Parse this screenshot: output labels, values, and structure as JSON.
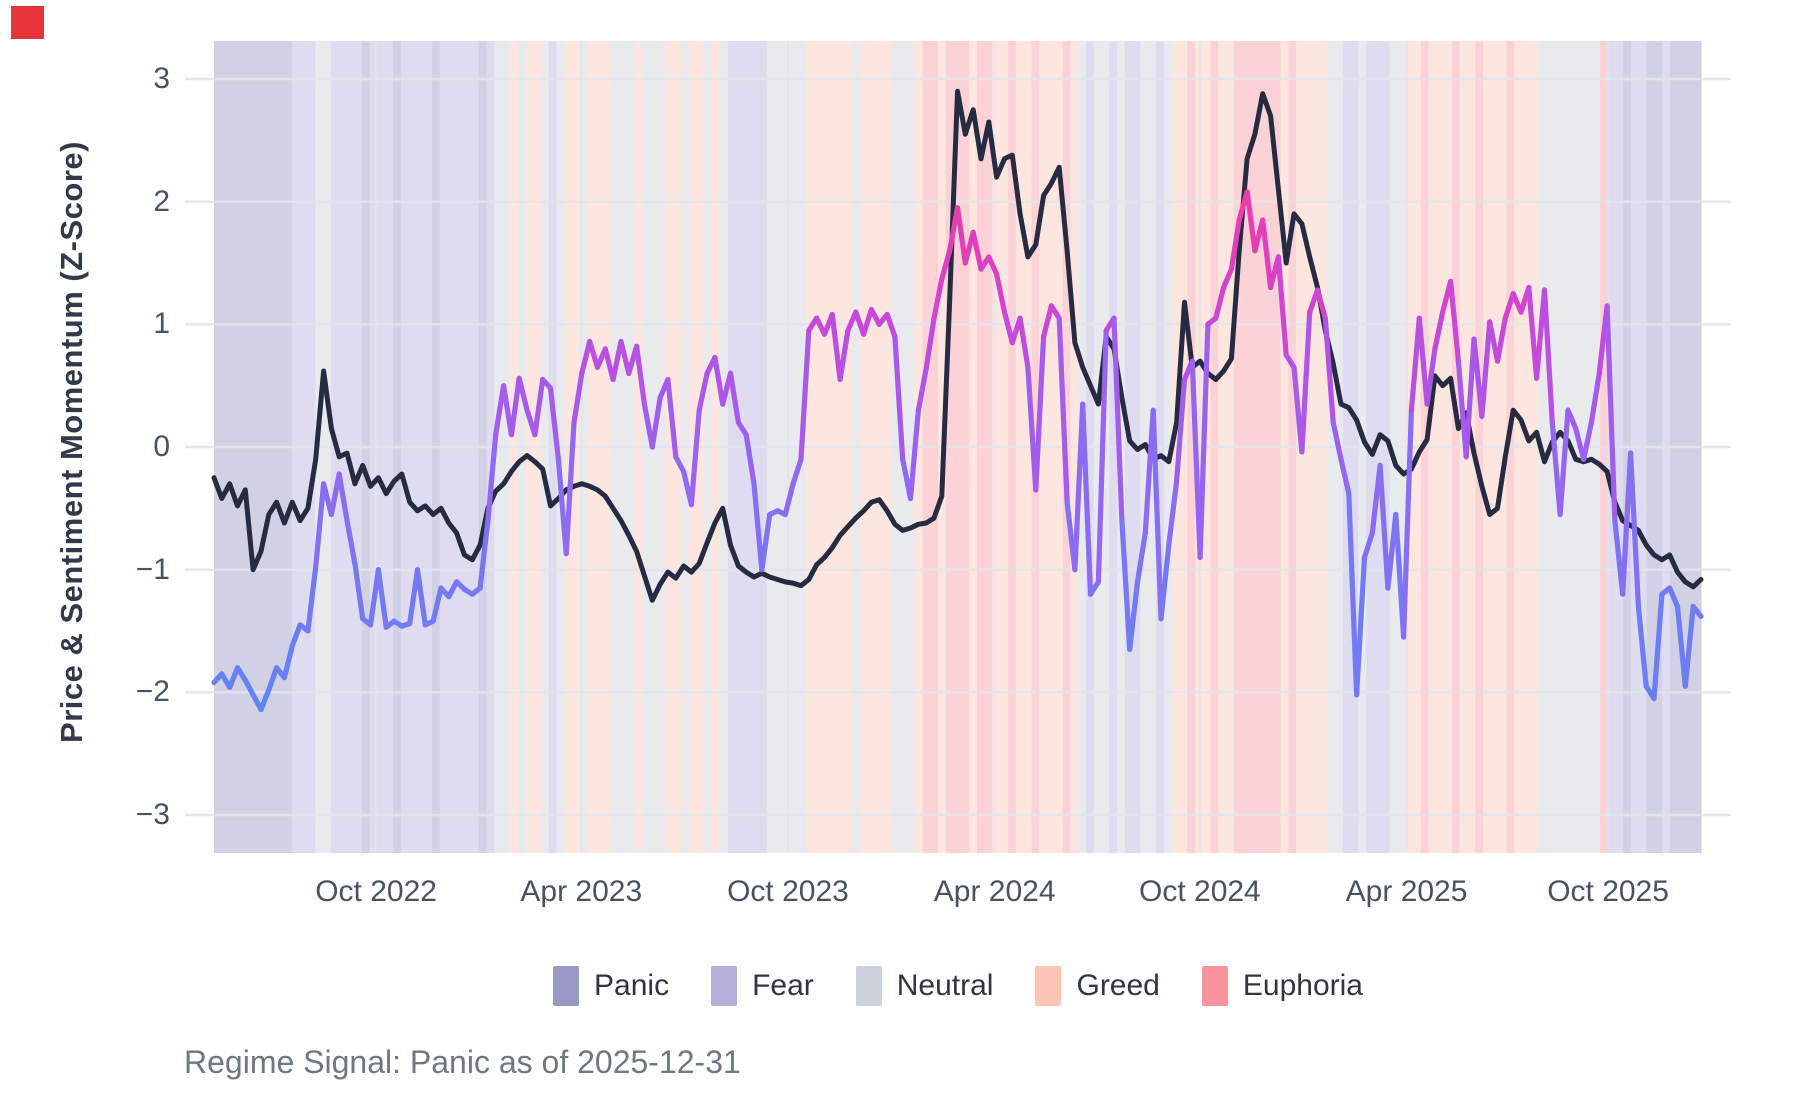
{
  "corner_marker": {
    "color": "#e5343a"
  },
  "y_axis": {
    "title": "Price & Sentiment Momentum (Z-Score)"
  },
  "caption": "Regime Signal: Panic as of 2025-12-31",
  "chart_data": {
    "type": "line",
    "ylabel": "Price & Sentiment Momentum (Z-Score)",
    "ylim": [
      -3.31,
      3.31
    ],
    "grid": true,
    "grid_color": "#e0e4eb",
    "y_ticks": [
      {
        "label": "3",
        "value": 3
      },
      {
        "label": "2",
        "value": 2
      },
      {
        "label": "1",
        "value": 1
      },
      {
        "label": "0",
        "value": 0
      },
      {
        "label": "−1",
        "value": -1
      },
      {
        "label": "−2",
        "value": -2
      },
      {
        "label": "−3",
        "value": -3
      }
    ],
    "x_ticks": [
      {
        "label": "Oct 2022",
        "pos": 0.109
      },
      {
        "label": "Apr 2023",
        "pos": 0.247
      },
      {
        "label": "Oct 2023",
        "pos": 0.386
      },
      {
        "label": "Apr 2024",
        "pos": 0.525
      },
      {
        "label": "Oct 2024",
        "pos": 0.663
      },
      {
        "label": "Apr 2025",
        "pos": 0.802
      },
      {
        "label": "Oct 2025",
        "pos": 0.9375
      }
    ],
    "legend_position": "bottom",
    "regime_legend": [
      {
        "code": "P",
        "label": "Panic",
        "color": "#9a99c6",
        "band": "#d2d1e4"
      },
      {
        "code": "F",
        "label": "Fear",
        "color": "#b2b0d8",
        "band": "#dedcee"
      },
      {
        "code": "N",
        "label": "Neutral",
        "color": "#cdd2da",
        "band": "#e8eaee"
      },
      {
        "code": "G",
        "label": "Greed",
        "color": "#fdc3b5",
        "band": "#fde6df"
      },
      {
        "code": "E",
        "label": "Euphoria",
        "color": "#f8949c",
        "band": "#fbd3d7"
      }
    ],
    "regimes_weekly": "PPPPPPPPPPFFFNNFFFFPFFFPFFFFPFFFFFPFNNGNGGNFNGGNGGGNNNGNNNGGNGGNGNFFFFFNNNNNGGGGGGNGGGGNNNGEEGEEEGEEGGEGGEGGGEGNFNNFNFFNNFNGGEGGEGGEEEEEEGEGGGGNNFFNFFFNNGGEGGGEGGEGGGEGGGNNNNNNNNEFFPFFPPFPPPP",
    "series": [
      {
        "name": "price_momentum",
        "color": "#272b41",
        "values": [
          -0.25,
          -0.42,
          -0.3,
          -0.48,
          -0.35,
          -1.0,
          -0.85,
          -0.55,
          -0.45,
          -0.62,
          -0.45,
          -0.6,
          -0.5,
          -0.1,
          0.62,
          0.15,
          -0.08,
          -0.05,
          -0.3,
          -0.15,
          -0.32,
          -0.25,
          -0.38,
          -0.28,
          -0.22,
          -0.45,
          -0.52,
          -0.48,
          -0.55,
          -0.5,
          -0.62,
          -0.7,
          -0.88,
          -0.92,
          -0.8,
          -0.5,
          -0.36,
          -0.3,
          -0.2,
          -0.12,
          -0.07,
          -0.12,
          -0.18,
          -0.48,
          -0.42,
          -0.35,
          -0.32,
          -0.3,
          -0.32,
          -0.35,
          -0.4,
          -0.5,
          -0.6,
          -0.72,
          -0.85,
          -1.05,
          -1.25,
          -1.12,
          -1.02,
          -1.07,
          -0.97,
          -1.02,
          -0.95,
          -0.78,
          -0.62,
          -0.5,
          -0.8,
          -0.97,
          -1.02,
          -1.06,
          -1.03,
          -1.06,
          -1.08,
          -1.1,
          -1.11,
          -1.13,
          -1.08,
          -0.96,
          -0.9,
          -0.82,
          -0.72,
          -0.65,
          -0.58,
          -0.52,
          -0.45,
          -0.43,
          -0.52,
          -0.63,
          -0.68,
          -0.66,
          -0.63,
          -0.62,
          -0.58,
          -0.4,
          1.2,
          2.9,
          2.55,
          2.75,
          2.35,
          2.65,
          2.2,
          2.35,
          2.38,
          1.9,
          1.55,
          1.65,
          2.05,
          2.15,
          2.28,
          1.6,
          0.85,
          0.65,
          0.5,
          0.35,
          0.9,
          0.8,
          0.4,
          0.05,
          -0.02,
          0.02,
          -0.1,
          -0.07,
          -0.12,
          0.2,
          1.18,
          0.65,
          0.7,
          0.6,
          0.55,
          0.62,
          0.72,
          1.6,
          2.35,
          2.55,
          2.88,
          2.7,
          2.1,
          1.5,
          1.9,
          1.82,
          1.55,
          1.3,
          0.95,
          0.68,
          0.35,
          0.32,
          0.22,
          0.04,
          -0.06,
          0.1,
          0.05,
          -0.15,
          -0.22,
          -0.18,
          -0.04,
          0.06,
          0.58,
          0.5,
          0.56,
          0.15,
          0.28,
          -0.05,
          -0.32,
          -0.55,
          -0.5,
          -0.08,
          0.3,
          0.22,
          0.05,
          0.12,
          -0.12,
          0.04,
          0.12,
          0.05,
          -0.1,
          -0.12,
          -0.1,
          -0.14,
          -0.2,
          -0.45,
          -0.6,
          -0.64,
          -0.68,
          -0.8,
          -0.88,
          -0.92,
          -0.88,
          -1.02,
          -1.1,
          -1.14,
          -1.08
        ]
      },
      {
        "name": "sentiment_momentum",
        "colormap": [
          [
            -2.3,
            "#5b87f4"
          ],
          [
            -1.2,
            "#7579f3"
          ],
          [
            -0.3,
            "#8f6af1"
          ],
          [
            0.5,
            "#ab57e8"
          ],
          [
            1.2,
            "#d343cf"
          ],
          [
            2.2,
            "#f23a9f"
          ]
        ],
        "values": [
          -1.92,
          -1.85,
          -1.96,
          -1.8,
          -1.9,
          -2.02,
          -2.14,
          -1.98,
          -1.8,
          -1.88,
          -1.62,
          -1.45,
          -1.5,
          -0.98,
          -0.3,
          -0.55,
          -0.22,
          -0.6,
          -0.95,
          -1.4,
          -1.45,
          -1.0,
          -1.47,
          -1.42,
          -1.46,
          -1.44,
          -1.0,
          -1.45,
          -1.42,
          -1.15,
          -1.22,
          -1.1,
          -1.16,
          -1.2,
          -1.15,
          -0.6,
          0.1,
          0.5,
          0.1,
          0.56,
          0.3,
          0.1,
          0.55,
          0.48,
          -0.1,
          -0.87,
          0.2,
          0.6,
          0.86,
          0.65,
          0.8,
          0.55,
          0.86,
          0.6,
          0.82,
          0.35,
          0.0,
          0.4,
          0.55,
          -0.08,
          -0.2,
          -0.47,
          0.3,
          0.6,
          0.73,
          0.35,
          0.6,
          0.2,
          0.1,
          -0.3,
          -1.0,
          -0.55,
          -0.52,
          -0.55,
          -0.3,
          -0.1,
          0.95,
          1.05,
          0.92,
          1.08,
          0.55,
          0.95,
          1.1,
          0.92,
          1.12,
          1.0,
          1.08,
          0.9,
          -0.1,
          -0.42,
          0.3,
          0.64,
          1.05,
          1.37,
          1.6,
          1.95,
          1.5,
          1.75,
          1.45,
          1.55,
          1.41,
          1.1,
          0.85,
          1.05,
          0.65,
          -0.35,
          0.9,
          1.15,
          1.05,
          -0.45,
          -1.0,
          0.35,
          -1.2,
          -1.1,
          0.95,
          1.05,
          -0.6,
          -1.65,
          -1.1,
          -0.7,
          0.3,
          -1.4,
          -0.8,
          -0.28,
          0.55,
          0.7,
          -0.9,
          1.0,
          1.05,
          1.3,
          1.45,
          1.85,
          2.08,
          1.6,
          1.85,
          1.3,
          1.55,
          0.75,
          0.65,
          -0.04,
          1.1,
          1.28,
          1.05,
          0.2,
          -0.1,
          -0.38,
          -2.02,
          -0.9,
          -0.7,
          -0.15,
          -1.15,
          -0.55,
          -1.55,
          0.3,
          1.05,
          0.35,
          0.8,
          1.1,
          1.35,
          0.7,
          -0.08,
          0.88,
          0.25,
          1.02,
          0.7,
          1.05,
          1.25,
          1.1,
          1.3,
          0.56,
          1.28,
          0.2,
          -0.55,
          0.3,
          0.15,
          -0.1,
          0.2,
          0.6,
          1.15,
          -0.6,
          -1.2,
          -0.05,
          -1.3,
          -1.95,
          -2.05,
          -1.2,
          -1.15,
          -1.3,
          -1.95,
          -1.3,
          -1.38
        ]
      }
    ]
  }
}
